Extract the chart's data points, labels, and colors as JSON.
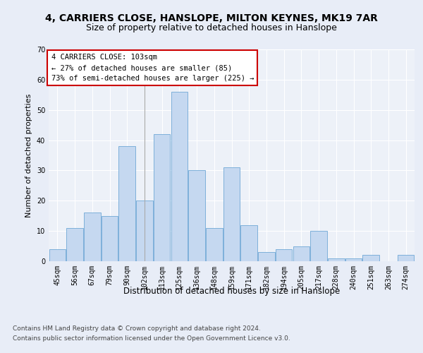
{
  "title_line1": "4, CARRIERS CLOSE, HANSLOPE, MILTON KEYNES, MK19 7AR",
  "title_line2": "Size of property relative to detached houses in Hanslope",
  "xlabel": "Distribution of detached houses by size in Hanslope",
  "ylabel": "Number of detached properties",
  "footer_line1": "Contains HM Land Registry data © Crown copyright and database right 2024.",
  "footer_line2": "Contains public sector information licensed under the Open Government Licence v3.0.",
  "categories": [
    "45sqm",
    "56sqm",
    "67sqm",
    "79sqm",
    "90sqm",
    "102sqm",
    "113sqm",
    "125sqm",
    "136sqm",
    "148sqm",
    "159sqm",
    "171sqm",
    "182sqm",
    "194sqm",
    "205sqm",
    "217sqm",
    "228sqm",
    "240sqm",
    "251sqm",
    "263sqm",
    "274sqm"
  ],
  "values": [
    4,
    11,
    16,
    15,
    38,
    20,
    42,
    56,
    30,
    11,
    31,
    12,
    3,
    4,
    5,
    10,
    1,
    1,
    2,
    0,
    2
  ],
  "bar_color": "#c5d8f0",
  "bar_edge_color": "#6fa8d6",
  "annotation_text": "4 CARRIERS CLOSE: 103sqm\n← 27% of detached houses are smaller (85)\n73% of semi-detached houses are larger (225) →",
  "annotation_box_color": "#ffffff",
  "annotation_box_edge_color": "#cc0000",
  "bg_color": "#e8edf7",
  "plot_bg_color": "#edf1f8",
  "ylim": [
    0,
    70
  ],
  "yticks": [
    0,
    10,
    20,
    30,
    40,
    50,
    60,
    70
  ],
  "grid_color": "#ffffff",
  "title1_fontsize": 10,
  "title2_fontsize": 9,
  "xlabel_fontsize": 8.5,
  "ylabel_fontsize": 8,
  "tick_fontsize": 7,
  "annotation_fontsize": 7.5,
  "footer_fontsize": 6.5
}
